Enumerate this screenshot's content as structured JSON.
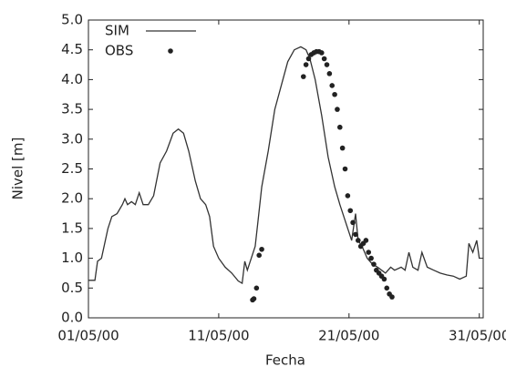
{
  "chart_data": {
    "type": "line",
    "xlabel": "Fecha",
    "ylabel": "Nivel [m]",
    "xlim": [
      1,
      31.3
    ],
    "ylim": [
      0,
      5
    ],
    "xticks": [
      {
        "value": 1,
        "label": "01/05/00"
      },
      {
        "value": 11,
        "label": "11/05/00"
      },
      {
        "value": 21,
        "label": "21/05/00"
      },
      {
        "value": 31,
        "label": "31/05/00"
      }
    ],
    "yticks": [
      {
        "value": 0,
        "label": "0.0"
      },
      0.5,
      {
        "value": 1,
        "label": "1.0"
      },
      1.5,
      {
        "value": 2,
        "label": "2.0"
      },
      2.5,
      {
        "value": 3,
        "label": "3.0"
      },
      3.5,
      {
        "value": 4,
        "label": "4.0"
      },
      4.5,
      {
        "value": 5,
        "label": "5.0"
      }
    ],
    "legend": "upper left",
    "series": [
      {
        "name": "SIM",
        "style": "line",
        "color": "#333333",
        "x": [
          1.0,
          1.5,
          1.7,
          2.0,
          2.5,
          2.8,
          3.2,
          3.6,
          3.8,
          4.0,
          4.3,
          4.6,
          4.9,
          5.2,
          5.6,
          6.0,
          6.5,
          7.0,
          7.5,
          7.9,
          8.3,
          8.7,
          9.2,
          9.6,
          10.0,
          10.3,
          10.6,
          11.0,
          11.5,
          12.0,
          12.5,
          12.8,
          13.0,
          13.2,
          13.5,
          13.8,
          14.0,
          14.3,
          14.8,
          15.3,
          15.8,
          16.3,
          16.8,
          17.3,
          17.7,
          18.0,
          18.4,
          18.9,
          19.4,
          19.9,
          20.3,
          20.6,
          20.9,
          21.2,
          21.5,
          21.7,
          22.0,
          22.4,
          22.8,
          23.2,
          23.5,
          23.8,
          24.2,
          24.5,
          25.0,
          25.3,
          25.6,
          25.9,
          26.3,
          26.6,
          27.0,
          27.5,
          28.0,
          28.5,
          29.0,
          29.5,
          30.0,
          30.2,
          30.5,
          30.8,
          31.0
        ],
        "values": [
          0.63,
          0.63,
          0.95,
          1.0,
          1.5,
          1.7,
          1.75,
          1.9,
          2.0,
          1.9,
          1.95,
          1.9,
          2.1,
          1.9,
          1.9,
          2.05,
          2.6,
          2.8,
          3.1,
          3.17,
          3.1,
          2.8,
          2.3,
          2.0,
          1.9,
          1.7,
          1.2,
          1.0,
          0.85,
          0.75,
          0.62,
          0.58,
          0.95,
          0.8,
          1.0,
          1.2,
          1.6,
          2.2,
          2.8,
          3.5,
          3.9,
          4.3,
          4.5,
          4.55,
          4.5,
          4.35,
          4.0,
          3.4,
          2.7,
          2.2,
          1.9,
          1.7,
          1.5,
          1.3,
          1.75,
          1.3,
          1.2,
          1.0,
          0.9,
          0.85,
          0.8,
          0.75,
          0.85,
          0.8,
          0.85,
          0.8,
          1.1,
          0.85,
          0.8,
          1.1,
          0.85,
          0.8,
          0.75,
          0.72,
          0.7,
          0.65,
          0.7,
          1.25,
          1.1,
          1.3,
          1.0
        ]
      },
      {
        "name": "OBS",
        "style": "markers",
        "color": "#222222",
        "x": [
          13.6,
          13.7,
          13.9,
          14.1,
          14.3,
          17.5,
          17.7,
          17.9,
          18.1,
          18.3,
          18.5,
          18.7,
          18.9,
          19.1,
          19.3,
          19.5,
          19.7,
          19.9,
          20.1,
          20.3,
          20.5,
          20.7,
          20.9,
          21.1,
          21.3,
          21.5,
          21.7,
          21.9,
          22.1,
          22.3,
          22.5,
          22.7,
          22.9,
          23.1,
          23.3,
          23.5,
          23.7,
          23.9,
          24.1,
          24.3
        ],
        "values": [
          0.3,
          0.32,
          0.5,
          1.05,
          1.15,
          4.05,
          4.25,
          4.35,
          4.42,
          4.45,
          4.47,
          4.47,
          4.45,
          4.35,
          4.25,
          4.1,
          3.9,
          3.75,
          3.5,
          3.2,
          2.85,
          2.5,
          2.05,
          1.8,
          1.6,
          1.4,
          1.3,
          1.2,
          1.25,
          1.3,
          1.1,
          1.0,
          0.9,
          0.8,
          0.75,
          0.7,
          0.65,
          0.5,
          0.4,
          0.35
        ]
      }
    ]
  }
}
